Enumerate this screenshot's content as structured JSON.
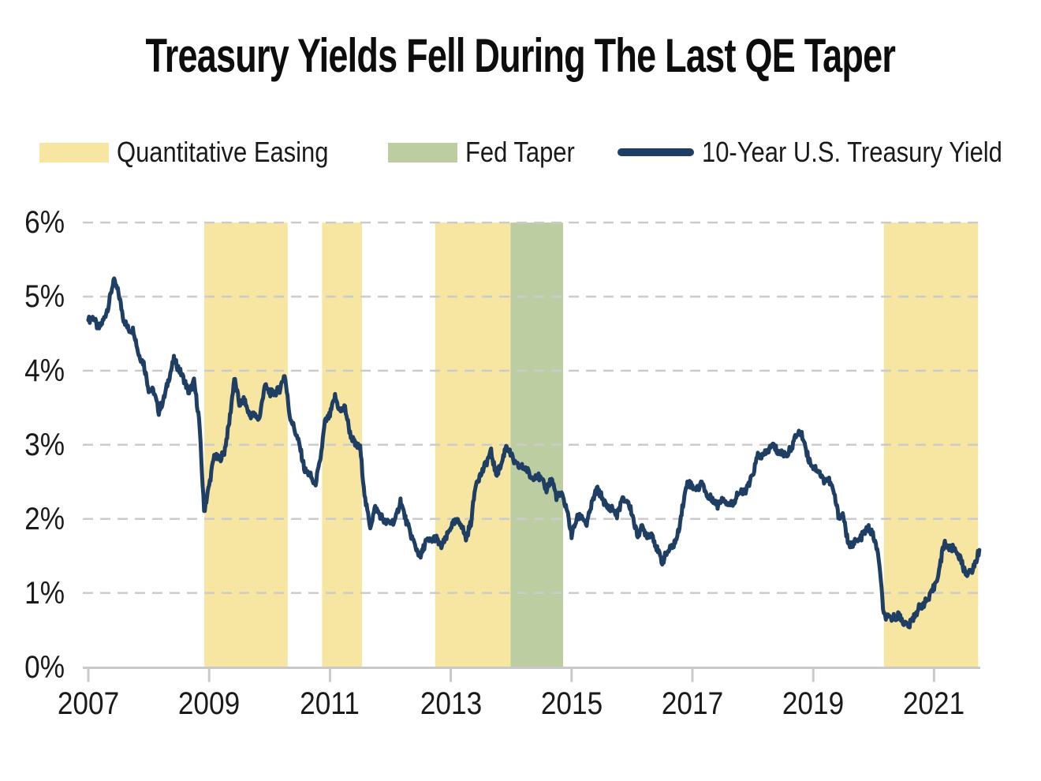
{
  "title": "Treasury Yields Fell During The Last QE Taper",
  "legend": {
    "items": [
      {
        "label": "Quantitative Easing",
        "swatch": "band",
        "color": "#F7E6A2"
      },
      {
        "label": "Fed Taper",
        "swatch": "band",
        "color": "#BCCEA1"
      },
      {
        "label": "10-Year U.S. Treasury Yield",
        "swatch": "line",
        "color": "#1F3E64"
      }
    ]
  },
  "chart_data": {
    "type": "line",
    "title": "Treasury Yields Fell During The Last QE Taper",
    "xlabel": "",
    "ylabel": "",
    "xlim": [
      2006.95,
      2021.9
    ],
    "ylim": [
      0,
      6
    ],
    "grid": "horizontal-dashed",
    "legend_position": "top",
    "x_ticks": [
      2007,
      2009,
      2011,
      2013,
      2015,
      2017,
      2019,
      2021
    ],
    "x_tick_labels": [
      "2007",
      "2009",
      "2011",
      "2013",
      "2015",
      "2017",
      "2019",
      "2021"
    ],
    "y_ticks": [
      0,
      1,
      2,
      3,
      4,
      5,
      6
    ],
    "y_tick_labels": [
      "0%",
      "1%",
      "2%",
      "3%",
      "4%",
      "5%",
      "6%"
    ],
    "bands": [
      {
        "name": "QE1",
        "label": "Quantitative Easing",
        "start": 2008.92,
        "end": 2010.3,
        "kind": "qe",
        "color": "#F7E6A2"
      },
      {
        "name": "QE2",
        "label": "Quantitative Easing",
        "start": 2010.87,
        "end": 2011.53,
        "kind": "qe",
        "color": "#F7E6A2"
      },
      {
        "name": "QE3",
        "label": "Quantitative Easing",
        "start": 2012.74,
        "end": 2013.99,
        "kind": "qe",
        "color": "#F7E6A2"
      },
      {
        "name": "Fed Taper",
        "label": "Fed Taper",
        "start": 2013.99,
        "end": 2014.86,
        "kind": "taper",
        "color": "#BCCEA1"
      },
      {
        "name": "QE4",
        "label": "Quantitative Easing",
        "start": 2020.17,
        "end": 2021.73,
        "kind": "qe",
        "color": "#F7E6A2"
      }
    ],
    "series": [
      {
        "name": "10-Year U.S. Treasury Yield",
        "color": "#1F3E64",
        "x_start_year": 2007,
        "x_interval": "monthly",
        "y_unit": "percent",
        "values": [
          4.68,
          4.72,
          4.56,
          4.68,
          4.88,
          5.22,
          5.05,
          4.7,
          4.55,
          4.55,
          4.22,
          4.1,
          3.75,
          3.72,
          3.45,
          3.62,
          3.9,
          4.15,
          4.02,
          3.88,
          3.7,
          3.85,
          3.35,
          2.1,
          2.45,
          2.85,
          2.8,
          2.9,
          3.3,
          3.9,
          3.55,
          3.6,
          3.4,
          3.4,
          3.35,
          3.8,
          3.7,
          3.7,
          3.75,
          3.95,
          3.4,
          3.2,
          2.98,
          2.65,
          2.6,
          2.45,
          2.75,
          3.3,
          3.4,
          3.65,
          3.45,
          3.5,
          3.15,
          3.0,
          2.95,
          2.25,
          1.9,
          2.15,
          2.05,
          1.95,
          1.95,
          1.98,
          2.25,
          2.0,
          1.8,
          1.62,
          1.48,
          1.7,
          1.7,
          1.75,
          1.62,
          1.72,
          1.9,
          1.96,
          1.95,
          1.73,
          1.95,
          2.5,
          2.6,
          2.75,
          2.9,
          2.6,
          2.72,
          3.0,
          2.85,
          2.72,
          2.7,
          2.68,
          2.55,
          2.6,
          2.52,
          2.4,
          2.55,
          2.3,
          2.32,
          2.15,
          1.78,
          2.0,
          2.05,
          1.92,
          2.2,
          2.4,
          2.3,
          2.15,
          2.15,
          2.05,
          2.25,
          2.25,
          2.08,
          1.78,
          1.88,
          1.78,
          1.8,
          1.58,
          1.42,
          1.55,
          1.62,
          1.75,
          2.15,
          2.5,
          2.44,
          2.4,
          2.5,
          2.28,
          2.28,
          2.18,
          2.3,
          2.2,
          2.2,
          2.35,
          2.35,
          2.42,
          2.6,
          2.86,
          2.84,
          2.92,
          3.0,
          2.9,
          2.88,
          2.88,
          3.02,
          3.18,
          3.1,
          2.82,
          2.7,
          2.66,
          2.52,
          2.54,
          2.38,
          2.05,
          2.05,
          1.62,
          1.68,
          1.7,
          1.8,
          1.88,
          1.76,
          1.48,
          0.7,
          0.65,
          0.67,
          0.7,
          0.6,
          0.55,
          0.68,
          0.8,
          0.86,
          0.92,
          1.08,
          1.3,
          1.68,
          1.6,
          1.6,
          1.5,
          1.3,
          1.26,
          1.36,
          1.58
        ]
      }
    ]
  }
}
